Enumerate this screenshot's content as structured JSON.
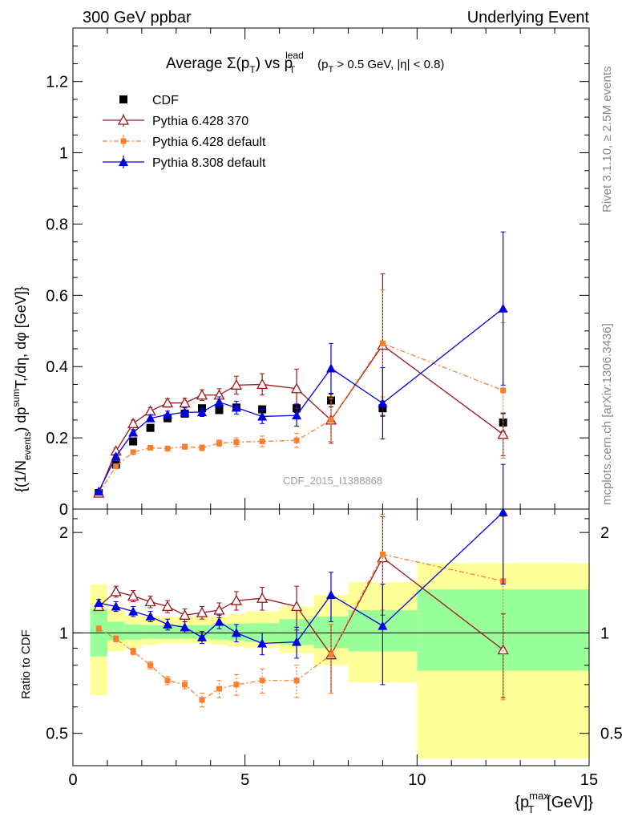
{
  "header": {
    "left": "300 GeV ppbar",
    "right": "Underlying Event"
  },
  "side_labels": {
    "rivet": "Rivet 3.1.10, ≥ 2.5M events",
    "mcplots": "mcplots.cern.ch [arXiv:1306.3436]"
  },
  "watermark": "CDF_2015_I1388868",
  "chart_data": [
    {
      "type": "line",
      "title": "Average Σ(pT) vs pT lead (pT > 0.5 GeV, |η| < 0.8)",
      "title_parts": {
        "main": "Average ",
        "sigma": "Σ(p",
        "sub_t": "T",
        "close_vs": ") vs p",
        "sup_lead": "lead",
        "tail": "(p",
        "tail2": " > 0.5 GeV, |η| < 0.8)"
      },
      "ylabel": "{(1/Nevents) dp sum T,/dη, dφ [GeV]}",
      "ylabel_parts": {
        "a": "{(1/N",
        "events": "events",
        "b": ") dp",
        "sum": "sum",
        "c": "T,/dη, dφ [GeV]}"
      },
      "xlim": [
        0,
        15
      ],
      "ylim": [
        0,
        1.35
      ],
      "yticks": [
        0,
        0.2,
        0.4,
        0.6,
        0.8,
        1,
        1.2
      ],
      "ytick_labels": [
        "0",
        "0.2",
        "0.4",
        "0.6",
        "0.8",
        "1",
        "1.2"
      ],
      "legend_position": "top-left",
      "series": [
        {
          "name": "CDF",
          "color": "#000000",
          "marker": "filled-square",
          "line": "none",
          "x": [
            0.75,
            1.25,
            1.75,
            2.25,
            2.75,
            3.25,
            3.75,
            4.25,
            4.75,
            5.5,
            6.5,
            7.5,
            9.0,
            12.5
          ],
          "y": [
            0.045,
            0.125,
            0.19,
            0.228,
            0.255,
            0.268,
            0.283,
            0.278,
            0.285,
            0.28,
            0.283,
            0.305,
            0.283,
            0.243
          ],
          "err": [
            0.003,
            0.004,
            0.005,
            0.005,
            0.006,
            0.006,
            0.007,
            0.007,
            0.008,
            0.009,
            0.012,
            0.018,
            0.02,
            0.025
          ]
        },
        {
          "name": "Pythia 6.428 370",
          "color": "#99161a",
          "marker": "open-triangle",
          "line": "solid",
          "x": [
            0.75,
            1.25,
            1.75,
            2.25,
            2.75,
            3.25,
            3.75,
            4.25,
            4.75,
            5.5,
            6.5,
            7.5,
            9.0,
            12.5
          ],
          "y": [
            0.045,
            0.163,
            0.24,
            0.275,
            0.298,
            0.298,
            0.32,
            0.32,
            0.348,
            0.35,
            0.338,
            0.25,
            0.46,
            0.21
          ],
          "err": [
            0.003,
            0.008,
            0.01,
            0.01,
            0.012,
            0.013,
            0.015,
            0.018,
            0.025,
            0.03,
            0.055,
            0.065,
            0.2,
            0.06
          ]
        },
        {
          "name": "Pythia 6.428 default",
          "color": "#f77f2f",
          "marker": "filled-small-square",
          "line": "dash-dot",
          "x": [
            0.75,
            1.25,
            1.75,
            2.25,
            2.75,
            3.25,
            3.75,
            4.25,
            4.75,
            5.5,
            6.5,
            7.5,
            9.0,
            12.5
          ],
          "y": [
            0.045,
            0.12,
            0.16,
            0.172,
            0.17,
            0.175,
            0.172,
            0.185,
            0.188,
            0.19,
            0.193,
            0.25,
            0.465,
            0.333
          ],
          "err": [
            0.003,
            0.004,
            0.005,
            0.006,
            0.006,
            0.007,
            0.008,
            0.009,
            0.012,
            0.015,
            0.02,
            0.06,
            0.15,
            0.19
          ]
        },
        {
          "name": "Pythia 8.308 default",
          "color": "#0000e0",
          "marker": "filled-triangle",
          "line": "solid",
          "x": [
            0.75,
            1.25,
            1.75,
            2.25,
            2.75,
            3.25,
            3.75,
            4.25,
            4.75,
            5.5,
            6.5,
            7.5,
            9.0,
            12.5
          ],
          "y": [
            0.05,
            0.148,
            0.215,
            0.255,
            0.265,
            0.272,
            0.272,
            0.3,
            0.285,
            0.26,
            0.263,
            0.395,
            0.297,
            0.563
          ],
          "err": [
            0.003,
            0.006,
            0.008,
            0.01,
            0.01,
            0.012,
            0.012,
            0.015,
            0.018,
            0.02,
            0.03,
            0.07,
            0.1,
            0.215
          ]
        }
      ]
    },
    {
      "type": "line",
      "ylabel": "Ratio to CDF",
      "xlabel": "{pT max [GeV]}",
      "xlabel_parts": {
        "a": "{p",
        "max": "max",
        "T": "T",
        "b": " [GeV]}"
      },
      "xlim": [
        0,
        15
      ],
      "ylim": [
        0.4,
        2.35
      ],
      "yscale": "log",
      "yticks": [
        0.5,
        1,
        2
      ],
      "ytick_labels": [
        "0.5",
        "1",
        "2"
      ],
      "xticks": [
        0,
        5,
        10,
        15
      ],
      "xtick_labels": [
        "0",
        "5",
        "10",
        "15"
      ],
      "reference_line": 1,
      "uncertainty_bands": {
        "x_edges": [
          0.5,
          1.0,
          1.5,
          2.0,
          2.5,
          3.0,
          3.5,
          4.0,
          4.5,
          5.0,
          6.0,
          7.0,
          8.0,
          10.0,
          15.0
        ],
        "stat_lo": [
          0.85,
          0.95,
          0.955,
          0.96,
          0.96,
          0.96,
          0.96,
          0.955,
          0.95,
          0.94,
          0.92,
          0.9,
          0.88,
          0.77
        ],
        "stat_hi": [
          1.18,
          1.08,
          1.06,
          1.055,
          1.055,
          1.055,
          1.055,
          1.06,
          1.065,
          1.07,
          1.1,
          1.12,
          1.17,
          1.35
        ],
        "total_lo": [
          0.65,
          0.88,
          0.9,
          0.92,
          0.93,
          0.93,
          0.93,
          0.92,
          0.91,
          0.9,
          0.87,
          0.8,
          0.71,
          0.42
        ],
        "total_hi": [
          1.4,
          1.18,
          1.13,
          1.12,
          1.12,
          1.12,
          1.12,
          1.12,
          1.14,
          1.16,
          1.2,
          1.3,
          1.42,
          1.62
        ],
        "stat_color": "#99ff99",
        "total_color": "#ffff99"
      },
      "series": [
        {
          "name": "Pythia 6.428 370",
          "color": "#99161a",
          "marker": "open-triangle",
          "line": "solid",
          "x": [
            0.75,
            1.25,
            1.75,
            2.25,
            2.75,
            3.25,
            3.75,
            4.25,
            4.75,
            5.5,
            6.5,
            7.5,
            9.0,
            12.5
          ],
          "y": [
            1.2,
            1.33,
            1.29,
            1.24,
            1.2,
            1.13,
            1.15,
            1.17,
            1.25,
            1.27,
            1.2,
            0.86,
            1.68,
            0.89
          ],
          "err": [
            0.03,
            0.05,
            0.05,
            0.05,
            0.05,
            0.05,
            0.05,
            0.06,
            0.08,
            0.1,
            0.18,
            0.2,
            0.55,
            0.25
          ]
        },
        {
          "name": "Pythia 6.428 default",
          "color": "#f77f2f",
          "marker": "filled-small-square",
          "line": "dash-dot",
          "x": [
            0.75,
            1.25,
            1.75,
            2.25,
            2.75,
            3.25,
            3.75,
            4.25,
            4.75,
            5.5,
            6.5,
            7.5,
            9.0,
            12.5
          ],
          "y": [
            1.03,
            0.96,
            0.88,
            0.8,
            0.72,
            0.7,
            0.63,
            0.68,
            0.7,
            0.72,
            0.72,
            0.86,
            1.72,
            1.43
          ],
          "err": [
            0.02,
            0.02,
            0.02,
            0.02,
            0.02,
            0.02,
            0.03,
            0.04,
            0.05,
            0.06,
            0.08,
            0.2,
            0.55,
            0.8
          ]
        },
        {
          "name": "Pythia 8.308 default",
          "color": "#0000e0",
          "marker": "filled-triangle",
          "line": "solid",
          "x": [
            0.75,
            1.25,
            1.75,
            2.25,
            2.75,
            3.25,
            3.75,
            4.25,
            4.75,
            5.5,
            6.5,
            7.5,
            9.0,
            12.5
          ],
          "y": [
            1.23,
            1.2,
            1.16,
            1.12,
            1.06,
            1.04,
            0.97,
            1.08,
            1.0,
            0.93,
            0.94,
            1.3,
            1.05,
            2.3
          ],
          "err": [
            0.03,
            0.04,
            0.04,
            0.04,
            0.04,
            0.04,
            0.04,
            0.05,
            0.06,
            0.07,
            0.1,
            0.22,
            0.35,
            0.9
          ]
        }
      ]
    }
  ]
}
